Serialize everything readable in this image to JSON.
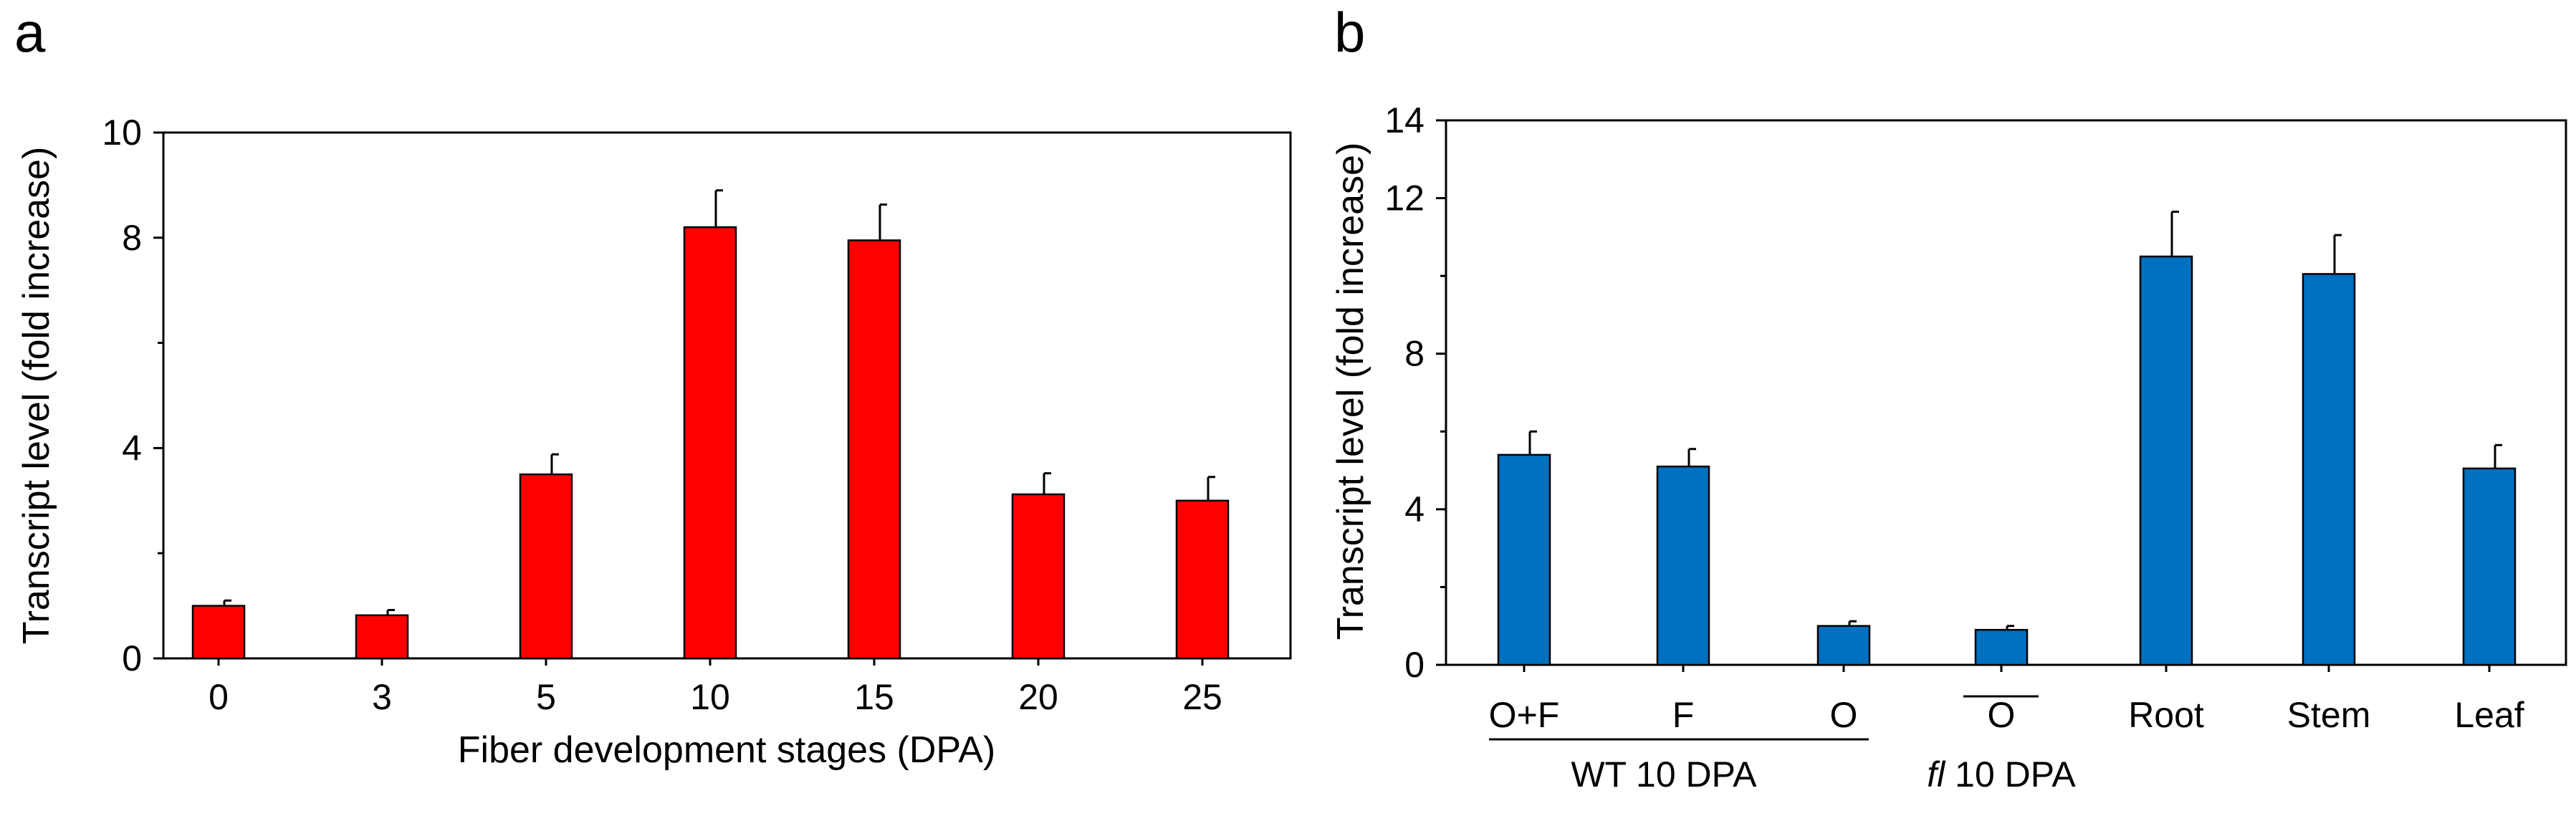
{
  "chart_data": [
    {
      "panel_label": "a",
      "type": "bar",
      "xlabel": "Fiber development stages (DPA)",
      "ylabel": "Transcript level (fold increase)",
      "ylim": [
        0,
        10
      ],
      "y_ticks": [
        0,
        4,
        8,
        10
      ],
      "y_minor_ticks": [
        2,
        6
      ],
      "categories": [
        "0",
        "3",
        "5",
        "10",
        "15",
        "20",
        "25"
      ],
      "values": [
        1.0,
        0.82,
        3.5,
        8.2,
        7.95,
        3.12,
        3.0
      ],
      "errors": [
        0.1,
        0.1,
        0.38,
        0.7,
        0.68,
        0.4,
        0.45
      ],
      "color": "#ff0000"
    },
    {
      "panel_label": "b",
      "type": "bar",
      "xlabel": "",
      "ylabel": "Transcript level (fold increase)",
      "ylim": [
        0,
        14
      ],
      "y_ticks": [
        0,
        4,
        8,
        12,
        14
      ],
      "y_minor_ticks": [
        2,
        6,
        10
      ],
      "categories": [
        "O+F",
        "F",
        "O",
        "O",
        "Root",
        "Stem",
        "Leaf"
      ],
      "values": [
        5.4,
        5.1,
        1.0,
        0.9,
        10.5,
        10.05,
        5.05
      ],
      "errors": [
        0.6,
        0.45,
        0.12,
        0.1,
        1.15,
        1.0,
        0.6
      ],
      "color": "#0070c0",
      "groups": [
        {
          "label_main": "WT 10 DPA",
          "label_italic": ""
        },
        {
          "label_main": " 10 DPA",
          "label_italic": "fl"
        }
      ]
    }
  ]
}
